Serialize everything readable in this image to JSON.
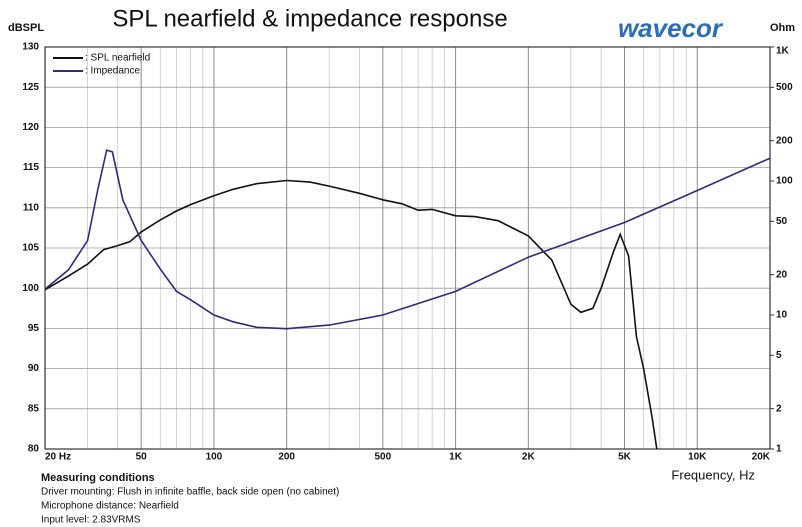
{
  "chart_data": {
    "type": "line",
    "title": "SPL nearfield & impedance response",
    "logo": "wavecor",
    "y_label": "dBSPL",
    "y2_label": "Ohm",
    "x_label": "Frequency, Hz",
    "xscale": "log",
    "y2scale": "log",
    "grid": true,
    "legend": "upper left",
    "xlim": [
      20,
      20000
    ],
    "xticks": [
      {
        "value": 20,
        "label": "20 Hz"
      },
      50,
      100,
      200,
      500,
      {
        "value": 1000,
        "label": "1K"
      },
      {
        "value": 2000,
        "label": "2K"
      },
      {
        "value": 5000,
        "label": "5K"
      },
      {
        "value": 10000,
        "label": "10K"
      },
      {
        "value": 20000,
        "label": "20K"
      }
    ],
    "xminor": [
      30,
      40,
      60,
      70,
      80,
      90,
      300,
      400,
      600,
      700,
      800,
      900,
      3000,
      4000,
      6000,
      7000,
      8000,
      9000
    ],
    "ylim": [
      80,
      130
    ],
    "yticks": [
      80,
      85,
      90,
      95,
      100,
      105,
      110,
      115,
      120,
      125,
      130
    ],
    "y2lim": [
      1,
      1000
    ],
    "y2ticks": [
      1,
      2,
      5,
      10,
      20,
      50,
      100,
      200,
      500,
      {
        "value": 1000,
        "label": "1K"
      }
    ],
    "series": [
      {
        "name": ": SPL nearfield",
        "color": "#111111",
        "x": [
          20,
          25,
          30,
          35,
          40,
          45,
          50,
          60,
          70,
          80,
          100,
          120,
          150,
          200,
          250,
          300,
          400,
          500,
          600,
          700,
          800,
          1000,
          1200,
          1500,
          2000,
          2500,
          3000,
          3300,
          3700,
          4000,
          4500,
          4800,
          5200,
          5600,
          6000,
          6500,
          6800
        ],
        "values": [
          99.8,
          101.5,
          103,
          104.8,
          105.3,
          105.8,
          107,
          108.5,
          109.6,
          110.4,
          111.5,
          112.3,
          113,
          113.4,
          113.2,
          112.7,
          111.8,
          111,
          110.5,
          109.7,
          109.8,
          109,
          108.9,
          108.4,
          106.5,
          103.5,
          98,
          97,
          97.5,
          100,
          104.5,
          106.7,
          104,
          94,
          90,
          84,
          80
        ]
      },
      {
        "name": ": Impedance",
        "color": "#2b2b7e",
        "axis": "y2",
        "x": [
          20,
          25,
          30,
          33,
          36,
          38,
          42,
          50,
          60,
          70,
          80,
          100,
          120,
          150,
          200,
          300,
          500,
          1000,
          2000,
          5000,
          10000,
          20000
        ],
        "values": [
          15.6,
          21.7,
          36,
          85,
          170,
          165,
          72,
          36,
          22,
          15,
          13,
          10,
          8.9,
          8.1,
          7.9,
          8.4,
          10,
          15,
          27,
          49,
          85,
          148
        ]
      }
    ],
    "notes": {
      "heading": "Measuring conditions",
      "lines": [
        "Driver mounting: Flush in infinite baffle, back side open (no cabinet)",
        "Microphone distance: Nearfield",
        "Input level: 2.83VRMS"
      ]
    }
  }
}
